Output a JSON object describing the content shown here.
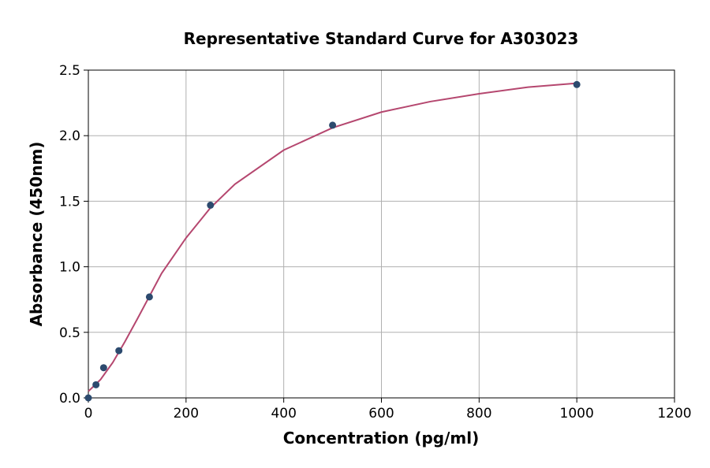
{
  "chart_data": {
    "type": "scatter",
    "title": "Representative Standard Curve for A303023",
    "x_label": "Concentration (pg/ml)",
    "y_label": "Absorbance (450nm)",
    "xlim": [
      0,
      1200
    ],
    "xticks": [
      0,
      200,
      400,
      600,
      800,
      1000,
      1200
    ],
    "ylim": [
      0,
      2.5
    ],
    "yticks": [
      {
        "value": 0,
        "label": "0.0"
      },
      {
        "value": 0.5,
        "label": "0.5"
      },
      {
        "value": 1,
        "label": "1.0"
      },
      {
        "value": 1.5,
        "label": "1.5"
      },
      {
        "value": 2,
        "label": "2.0"
      },
      {
        "value": 2.5,
        "label": "2.5"
      }
    ],
    "grid": true,
    "series": [
      {
        "mode": "line",
        "color": "#b5476f",
        "x": [
          0,
          25,
          50,
          75,
          100,
          150,
          200,
          250,
          300,
          400,
          500,
          600,
          700,
          800,
          900,
          1000
        ],
        "values": [
          0.05,
          0.14,
          0.27,
          0.43,
          0.6,
          0.95,
          1.22,
          1.45,
          1.63,
          1.89,
          2.06,
          2.18,
          2.26,
          2.32,
          2.37,
          2.4
        ]
      },
      {
        "mode": "markers",
        "color": "#2c4a6e",
        "x": [
          0,
          15.6,
          31.25,
          62.5,
          125,
          250,
          500,
          1000
        ],
        "values": [
          0.0,
          0.1,
          0.23,
          0.36,
          0.77,
          1.47,
          2.08,
          2.39
        ]
      }
    ]
  }
}
